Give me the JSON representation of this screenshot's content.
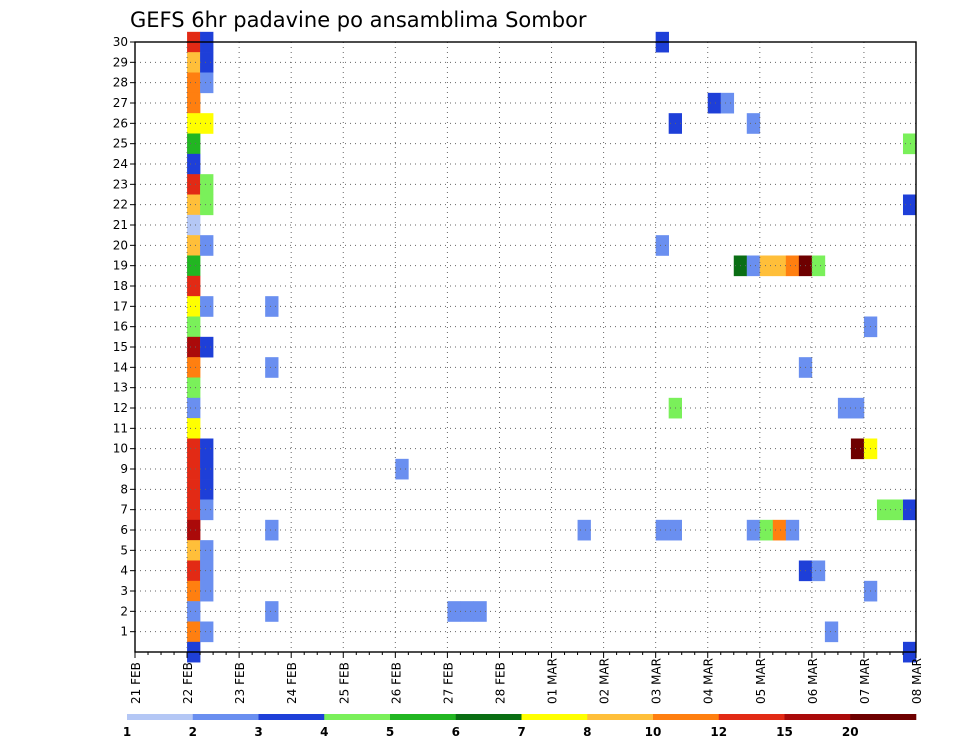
{
  "chart_data": {
    "type": "heatmap",
    "title": "GEFS 6hr padavine po ansamblima Sombor",
    "x_labels": [
      "21 FEB",
      "22 FEB",
      "23 FEB",
      "24 FEB",
      "25 FEB",
      "26 FEB",
      "27 FEB",
      "28 FEB",
      "01 MAR",
      "02 MAR",
      "03 MAR",
      "04 MAR",
      "05 MAR",
      "06 MAR",
      "07 MAR",
      "08 MAR"
    ],
    "y_labels": [
      "1",
      "2",
      "3",
      "4",
      "5",
      "6",
      "7",
      "8",
      "9",
      "10",
      "11",
      "12",
      "13",
      "14",
      "15",
      "16",
      "17",
      "18",
      "19",
      "20",
      "21",
      "22",
      "23",
      "24",
      "25",
      "26",
      "27",
      "28",
      "29",
      "30"
    ],
    "xlim": [
      0,
      60
    ],
    "ylim": [
      0,
      30
    ],
    "grid": true,
    "colorbar": {
      "labels": [
        "1",
        "2",
        "3",
        "4",
        "5",
        "6",
        "7",
        "8",
        "10",
        "12",
        "15",
        "20"
      ],
      "colors": [
        "#b4c7f5",
        "#6a8ff0",
        "#1e3fd8",
        "#7af05a",
        "#22b622",
        "#0a6e14",
        "#ffff00",
        "#ffbf3a",
        "#ff7f10",
        "#e22a15",
        "#aa0a0a",
        "#6e0000"
      ]
    },
    "cells": [
      {
        "m": 30,
        "t": 4,
        "c": 9
      },
      {
        "m": 30,
        "t": 5,
        "c": 2
      },
      {
        "m": 30,
        "t": 40,
        "c": 2
      },
      {
        "m": 29,
        "t": 4,
        "c": 7
      },
      {
        "m": 29,
        "t": 5,
        "c": 2
      },
      {
        "m": 28,
        "t": 4,
        "c": 8
      },
      {
        "m": 28,
        "t": 5,
        "c": 1
      },
      {
        "m": 27,
        "t": 4,
        "c": 8
      },
      {
        "m": 27,
        "t": 44,
        "c": 2
      },
      {
        "m": 27,
        "t": 45,
        "c": 1
      },
      {
        "m": 26,
        "t": 4,
        "c": 6
      },
      {
        "m": 26,
        "t": 5,
        "c": 6
      },
      {
        "m": 26,
        "t": 41,
        "c": 2
      },
      {
        "m": 26,
        "t": 47,
        "c": 1
      },
      {
        "m": 25,
        "t": 4,
        "c": 4
      },
      {
        "m": 25,
        "t": 59,
        "c": 3
      },
      {
        "m": 24,
        "t": 4,
        "c": 2
      },
      {
        "m": 23,
        "t": 4,
        "c": 9
      },
      {
        "m": 23,
        "t": 5,
        "c": 3
      },
      {
        "m": 22,
        "t": 4,
        "c": 7
      },
      {
        "m": 22,
        "t": 5,
        "c": 3
      },
      {
        "m": 22,
        "t": 59,
        "c": 2
      },
      {
        "m": 21,
        "t": 4,
        "c": 0
      },
      {
        "m": 20,
        "t": 4,
        "c": 7
      },
      {
        "m": 20,
        "t": 5,
        "c": 1
      },
      {
        "m": 20,
        "t": 40,
        "c": 1
      },
      {
        "m": 19,
        "t": 4,
        "c": 4
      },
      {
        "m": 19,
        "t": 46,
        "c": 5
      },
      {
        "m": 19,
        "t": 47,
        "c": 1
      },
      {
        "m": 19,
        "t": 48,
        "c": 7
      },
      {
        "m": 19,
        "t": 49,
        "c": 7
      },
      {
        "m": 19,
        "t": 50,
        "c": 8
      },
      {
        "m": 19,
        "t": 51,
        "c": 11
      },
      {
        "m": 19,
        "t": 52,
        "c": 3
      },
      {
        "m": 18,
        "t": 4,
        "c": 9
      },
      {
        "m": 17,
        "t": 4,
        "c": 6
      },
      {
        "m": 17,
        "t": 5,
        "c": 1
      },
      {
        "m": 17,
        "t": 10,
        "c": 1
      },
      {
        "m": 16,
        "t": 4,
        "c": 3
      },
      {
        "m": 16,
        "t": 56,
        "c": 1
      },
      {
        "m": 15,
        "t": 4,
        "c": 10
      },
      {
        "m": 15,
        "t": 5,
        "c": 2
      },
      {
        "m": 14,
        "t": 4,
        "c": 8
      },
      {
        "m": 14,
        "t": 10,
        "c": 1
      },
      {
        "m": 14,
        "t": 51,
        "c": 1
      },
      {
        "m": 13,
        "t": 4,
        "c": 3
      },
      {
        "m": 12,
        "t": 4,
        "c": 1
      },
      {
        "m": 12,
        "t": 41,
        "c": 3
      },
      {
        "m": 12,
        "t": 54,
        "c": 1
      },
      {
        "m": 12,
        "t": 55,
        "c": 1
      },
      {
        "m": 11,
        "t": 4,
        "c": 6
      },
      {
        "m": 10,
        "t": 4,
        "c": 9
      },
      {
        "m": 10,
        "t": 5,
        "c": 2
      },
      {
        "m": 10,
        "t": 55,
        "c": 11
      },
      {
        "m": 10,
        "t": 56,
        "c": 6
      },
      {
        "m": 9,
        "t": 4,
        "c": 9
      },
      {
        "m": 9,
        "t": 5,
        "c": 2
      },
      {
        "m": 9,
        "t": 20,
        "c": 1
      },
      {
        "m": 8,
        "t": 4,
        "c": 9
      },
      {
        "m": 8,
        "t": 5,
        "c": 2
      },
      {
        "m": 7,
        "t": 4,
        "c": 9
      },
      {
        "m": 7,
        "t": 5,
        "c": 1
      },
      {
        "m": 7,
        "t": 57,
        "c": 3
      },
      {
        "m": 7,
        "t": 58,
        "c": 3
      },
      {
        "m": 7,
        "t": 59,
        "c": 2
      },
      {
        "m": 6,
        "t": 4,
        "c": 10
      },
      {
        "m": 6,
        "t": 10,
        "c": 1
      },
      {
        "m": 6,
        "t": 34,
        "c": 1
      },
      {
        "m": 6,
        "t": 40,
        "c": 1
      },
      {
        "m": 6,
        "t": 41,
        "c": 1
      },
      {
        "m": 6,
        "t": 47,
        "c": 1
      },
      {
        "m": 6,
        "t": 48,
        "c": 3
      },
      {
        "m": 6,
        "t": 49,
        "c": 8
      },
      {
        "m": 6,
        "t": 50,
        "c": 1
      },
      {
        "m": 5,
        "t": 4,
        "c": 7
      },
      {
        "m": 5,
        "t": 5,
        "c": 1
      },
      {
        "m": 4,
        "t": 4,
        "c": 9
      },
      {
        "m": 4,
        "t": 5,
        "c": 1
      },
      {
        "m": 4,
        "t": 51,
        "c": 2
      },
      {
        "m": 4,
        "t": 52,
        "c": 1
      },
      {
        "m": 3,
        "t": 4,
        "c": 8
      },
      {
        "m": 3,
        "t": 5,
        "c": 1
      },
      {
        "m": 3,
        "t": 56,
        "c": 1
      },
      {
        "m": 2,
        "t": 4,
        "c": 1
      },
      {
        "m": 2,
        "t": 10,
        "c": 1
      },
      {
        "m": 2,
        "t": 24,
        "c": 1
      },
      {
        "m": 2,
        "t": 25,
        "c": 1
      },
      {
        "m": 2,
        "t": 26,
        "c": 1
      },
      {
        "m": 1,
        "t": 4,
        "c": 8
      },
      {
        "m": 1,
        "t": 5,
        "c": 1
      },
      {
        "m": 1,
        "t": 53,
        "c": 1
      },
      {
        "m": 0,
        "t": 4,
        "c": 2
      },
      {
        "m": 0,
        "t": 59,
        "c": 2
      }
    ]
  }
}
